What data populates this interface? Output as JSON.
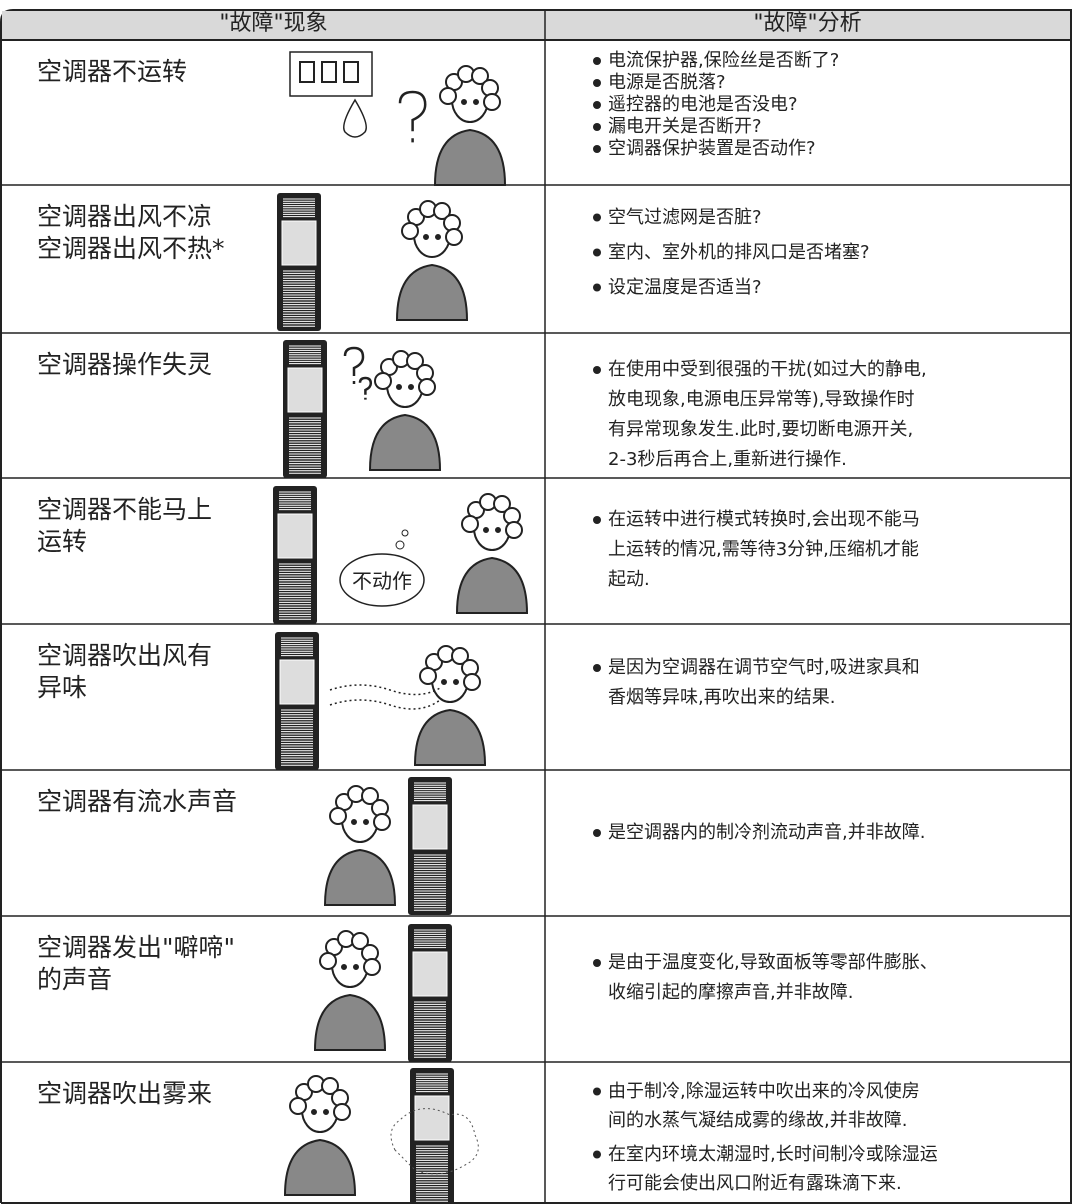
{
  "header": {
    "left": "\"故障\"现象",
    "right": "\"故障\"分析"
  },
  "rows": [
    {
      "symptom": [
        "空调器不运转"
      ],
      "analysis": [
        [
          "电流保护器,保险丝是否断了?"
        ],
        [
          "电源是否脱落?"
        ],
        [
          "遥控器的电池是否没电?"
        ],
        [
          "漏电开关是否断开?"
        ],
        [
          "空调器保护装置是否动作?"
        ]
      ]
    },
    {
      "symptom": [
        "空调器出风不凉",
        "空调器出风不热*"
      ],
      "analysis": [
        [
          "空气过滤网是否脏?"
        ],
        [
          "室内、室外机的排风口是否堵塞?"
        ],
        [
          "设定温度是否适当?"
        ]
      ]
    },
    {
      "symptom": [
        "空调器操作失灵"
      ],
      "analysis": [
        [
          "在使用中受到很强的干扰(如过大的静电,",
          "放电现象,电源电压异常等),导致操作时",
          "有异常现象发生.此时,要切断电源开关,",
          "2-3秒后再合上,重新进行操作."
        ]
      ]
    },
    {
      "symptom": [
        "空调器不能马上",
        "运转"
      ],
      "bubble": "不动作",
      "analysis": [
        [
          "在运转中进行模式转换时,会出现不能马",
          "上运转的情况,需等待3分钟,压缩机才能",
          "起动."
        ]
      ]
    },
    {
      "symptom": [
        "空调器吹出风有",
        "异味"
      ],
      "analysis": [
        [
          "是因为空调器在调节空气时,吸进家具和",
          "香烟等异味,再吹出来的结果."
        ]
      ]
    },
    {
      "symptom": [
        "空调器有流水声音"
      ],
      "analysis": [
        [
          "是空调器内的制冷剂流动声音,并非故障."
        ]
      ]
    },
    {
      "symptom": [
        "空调器发出\"噼啼\"",
        "的声音"
      ],
      "analysis": [
        [
          "是由于温度变化,导致面板等零部件膨胀、",
          "收缩引起的摩擦声音,并非故障."
        ]
      ]
    },
    {
      "symptom": [
        "空调器吹出雾来"
      ],
      "analysis": [
        [
          "由于制冷,除湿运转中吹出来的冷风使房",
          "间的水蒸气凝结成雾的缘故,并非故障."
        ],
        [
          "在室内环境太潮湿时,长时间制冷或除湿运",
          "行可能会使出风口附近有露珠滴下来."
        ]
      ]
    }
  ]
}
